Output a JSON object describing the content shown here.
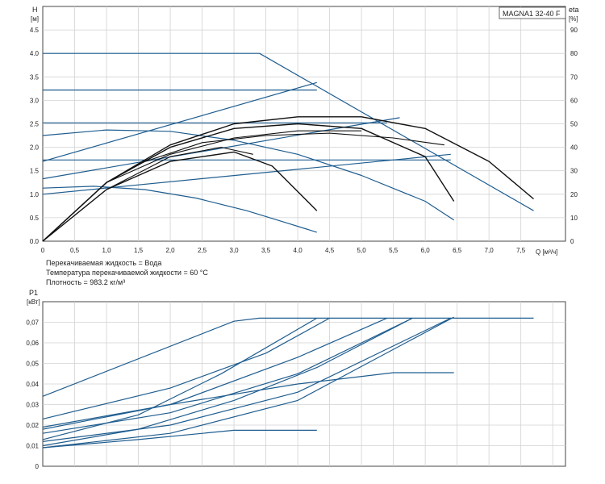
{
  "colors": {
    "blue": "#1f5d8f",
    "black": "#111111",
    "grid": "#d2d2d2",
    "frame": "#444444"
  },
  "top_chart": {
    "model_label": "MAGNA1 32-40 F",
    "y_label_line1": "H",
    "y_label_line2": "[м]",
    "eta_label_line1": "eta",
    "eta_label_line2": "[%]",
    "x_label": "Q [м³/ч]",
    "x_ticks": [
      "0",
      "0,5",
      "1,0",
      "1,5",
      "2,0",
      "2,5",
      "3,0",
      "3,5",
      "4,0",
      "4,5",
      "5,0",
      "5,5",
      "6,0",
      "6,5",
      "7,0",
      "7,5"
    ],
    "y_ticks": [
      "0.0",
      "0.5",
      "1.0",
      "1.5",
      "2.0",
      "2.5",
      "3.0",
      "3.5",
      "4.0",
      "4.5"
    ],
    "eta_ticks": [
      "0",
      "10",
      "20",
      "30",
      "40",
      "50",
      "60",
      "70",
      "80",
      "90"
    ]
  },
  "info": {
    "line1": "Перекачиваемая жидкость = Вода",
    "line2": "Температура перекачиваемой жидкости = 60 °C",
    "line3": "Плотность = 983.2 кг/м³"
  },
  "bottom_chart": {
    "y_label_line1": "P1",
    "y_label_line2": "[кВт]",
    "y_ticks": [
      "0",
      "0,01",
      "0,02",
      "0,03",
      "0,04",
      "0,05",
      "0,06",
      "0,07"
    ]
  },
  "chart_data": [
    {
      "type": "line",
      "title": "MAGNA1 32-40 F",
      "xlabel": "Q [м³/ч]",
      "ylabel": "H [м]",
      "y2label": "eta [%]",
      "xlim": [
        0,
        8.2
      ],
      "ylim": [
        0,
        5.0
      ],
      "y2lim": [
        0,
        100
      ],
      "grid": true,
      "series": [
        {
          "kind": "head-max",
          "color": "blue",
          "x": [
            0,
            3.4,
            7.7
          ],
          "y": [
            4.0,
            4.0,
            0.65
          ]
        },
        {
          "kind": "head-const",
          "color": "blue",
          "x": [
            0,
            4.3
          ],
          "y": [
            3.22,
            3.22
          ]
        },
        {
          "kind": "head-const",
          "color": "blue",
          "x": [
            0,
            5.4
          ],
          "y": [
            2.52,
            2.52
          ]
        },
        {
          "kind": "head-const",
          "color": "blue",
          "x": [
            0,
            6.4
          ],
          "y": [
            1.73,
            1.73
          ]
        },
        {
          "kind": "head-prop",
          "color": "blue",
          "x": [
            0,
            4.3
          ],
          "y": [
            1.7,
            3.38
          ]
        },
        {
          "kind": "head-prop",
          "color": "blue",
          "x": [
            0,
            5.6
          ],
          "y": [
            1.33,
            2.63
          ]
        },
        {
          "kind": "head-prop",
          "color": "blue",
          "x": [
            0,
            6.4
          ],
          "y": [
            1.0,
            1.85
          ]
        },
        {
          "kind": "head-curve",
          "color": "blue",
          "x": [
            0,
            1.0,
            2.0,
            3.0,
            4.0,
            5.0,
            6.0,
            6.45
          ],
          "y": [
            2.25,
            2.37,
            2.34,
            2.15,
            1.85,
            1.4,
            0.85,
            0.45
          ]
        },
        {
          "kind": "head-curve",
          "color": "blue",
          "x": [
            0,
            0.8,
            1.6,
            2.4,
            3.2,
            3.8,
            4.3
          ],
          "y": [
            1.13,
            1.17,
            1.1,
            0.92,
            0.65,
            0.4,
            0.19
          ]
        },
        {
          "kind": "eta",
          "color": "black",
          "x": [
            0,
            1,
            2,
            3,
            4,
            5,
            6,
            7,
            7.7
          ],
          "y": [
            0,
            25,
            41,
            50,
            53,
            53,
            48,
            34,
            18
          ]
        },
        {
          "kind": "eta",
          "color": "black",
          "x": [
            0,
            1,
            2,
            3,
            4,
            5,
            6,
            6.45
          ],
          "y": [
            0,
            25,
            40,
            48,
            50,
            48,
            36,
            17
          ]
        },
        {
          "kind": "eta",
          "color": "black",
          "x": [
            0,
            1,
            2,
            3,
            3.6,
            4.3
          ],
          "y": [
            0,
            22,
            34,
            38,
            32,
            13
          ]
        },
        {
          "kind": "eta-part",
          "color": "black",
          "x": [
            1.5,
            2.5,
            3.5,
            4.5,
            5.5,
            6.3
          ],
          "y": [
            33,
            42,
            45,
            46,
            44,
            41
          ]
        },
        {
          "kind": "eta-part",
          "color": "black",
          "x": [
            1.0,
            2.0,
            3.0,
            4.0,
            5.0
          ],
          "y": [
            25,
            37,
            44,
            47,
            47
          ]
        },
        {
          "kind": "eta-part",
          "color": "black",
          "x": [
            1.0,
            2.0,
            2.8,
            3.3
          ],
          "y": [
            22,
            36,
            40,
            37
          ]
        }
      ]
    },
    {
      "type": "line",
      "ylabel": "P1 [кВт]",
      "xlim": [
        0,
        8.2
      ],
      "ylim": [
        0,
        0.08
      ],
      "grid": true,
      "series": [
        {
          "kind": "power-max",
          "color": "blue",
          "x": [
            0,
            3.0,
            3.4,
            7.7
          ],
          "y": [
            0.034,
            0.0705,
            0.072,
            0.072
          ]
        },
        {
          "kind": "power",
          "color": "blue",
          "x": [
            0,
            2,
            3.5,
            4.5
          ],
          "y": [
            0.023,
            0.038,
            0.055,
            0.072
          ]
        },
        {
          "kind": "power",
          "color": "blue",
          "x": [
            0,
            2,
            4,
            5.4
          ],
          "y": [
            0.018,
            0.03,
            0.053,
            0.072
          ]
        },
        {
          "kind": "power",
          "color": "blue",
          "x": [
            0,
            2,
            4,
            5.8
          ],
          "y": [
            0.016,
            0.026,
            0.045,
            0.072
          ]
        },
        {
          "kind": "power",
          "color": "blue",
          "x": [
            0,
            2,
            4,
            6.4
          ],
          "y": [
            0.012,
            0.02,
            0.036,
            0.072
          ]
        },
        {
          "kind": "power",
          "color": "blue",
          "x": [
            0,
            1.5,
            2.8,
            4.3
          ],
          "y": [
            0.013,
            0.025,
            0.045,
            0.072
          ]
        },
        {
          "kind": "power",
          "color": "blue",
          "x": [
            0,
            1.5,
            3,
            4.3,
            5.8
          ],
          "y": [
            0.01,
            0.018,
            0.032,
            0.048,
            0.072
          ]
        },
        {
          "kind": "power",
          "color": "blue",
          "x": [
            0,
            2,
            4,
            6.45
          ],
          "y": [
            0.009,
            0.016,
            0.032,
            0.0725
          ]
        },
        {
          "kind": "power",
          "color": "blue",
          "x": [
            0,
            2,
            4,
            5.5,
            6.45
          ],
          "y": [
            0.019,
            0.03,
            0.04,
            0.0455,
            0.0455
          ]
        },
        {
          "kind": "power",
          "color": "blue",
          "x": [
            0,
            1.5,
            3,
            4.3
          ],
          "y": [
            0.009,
            0.013,
            0.0175,
            0.0175
          ]
        }
      ]
    }
  ]
}
